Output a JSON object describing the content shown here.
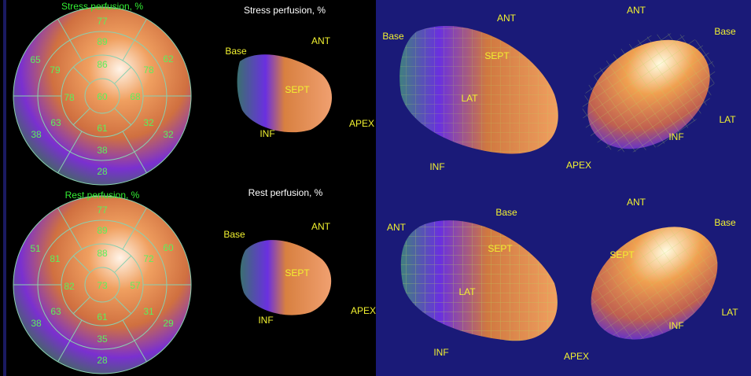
{
  "polar_maps": [
    {
      "title": "Stress perfusion, %",
      "outer": [
        77,
        62,
        32,
        28,
        38,
        65
      ],
      "mid": [
        89,
        78,
        32,
        38,
        63,
        79
      ],
      "inner": [
        86,
        68,
        61,
        78
      ],
      "apex": 60
    },
    {
      "title": "Rest perfusion, %",
      "outer": [
        77,
        60,
        29,
        28,
        38,
        51
      ],
      "mid": [
        89,
        72,
        31,
        35,
        63,
        81
      ],
      "inner": [
        88,
        57,
        61,
        82
      ],
      "apex": 73
    }
  ],
  "small_views": [
    {
      "title": "Stress perfusion, %",
      "labels": [
        "Base",
        "ANT",
        "SEPT",
        "INF",
        "APEX"
      ]
    },
    {
      "title": "Rest perfusion, %",
      "labels": [
        "Base",
        "ANT",
        "SEPT",
        "INF",
        "APEX"
      ]
    }
  ],
  "large_views": [
    {
      "labels": [
        "Base",
        "ANT",
        "SEPT",
        "LAT",
        "INF"
      ]
    },
    {
      "labels": [
        "ANT",
        "Base",
        "LAT",
        "INF",
        "APEX"
      ]
    },
    {
      "labels": [
        "ANT",
        "Base",
        "SEPT",
        "LAT",
        "INF"
      ]
    },
    {
      "labels": [
        "ANT",
        "Base",
        "SEPT",
        "LAT",
        "INF",
        "APEX"
      ]
    }
  ]
}
